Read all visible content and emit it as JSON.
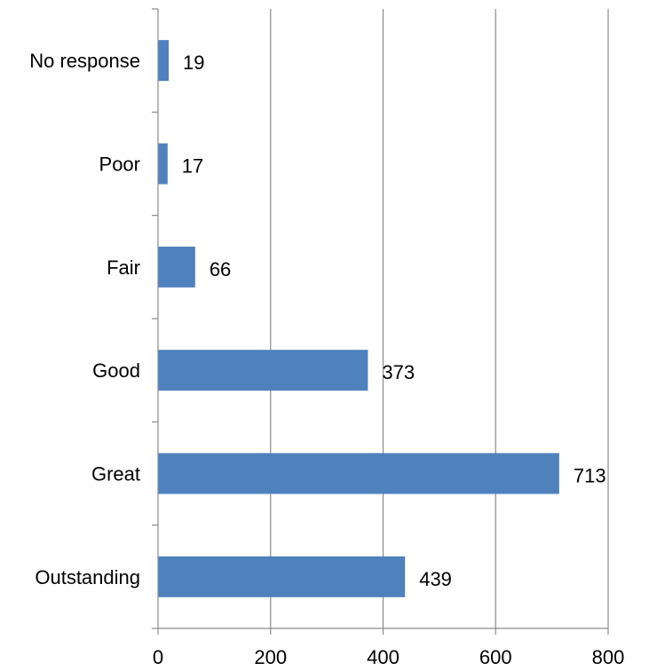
{
  "chart_data": {
    "type": "bar",
    "orientation": "horizontal",
    "title": "",
    "xlabel": "",
    "ylabel": "",
    "categories": [
      "No response",
      "Poor",
      "Fair",
      "Good",
      "Great",
      "Outstanding"
    ],
    "values": [
      19,
      17,
      66,
      373,
      713,
      439
    ],
    "data_labels": [
      "19",
      "17",
      "66",
      "373",
      "713",
      "439"
    ],
    "xlim": [
      0,
      800
    ],
    "xticks": [
      "0",
      "200",
      "400",
      "600",
      "800"
    ],
    "grid": "vertical",
    "legend": "none",
    "bar_color": "#4f81bd",
    "grid_color": "#8c8c8c"
  }
}
